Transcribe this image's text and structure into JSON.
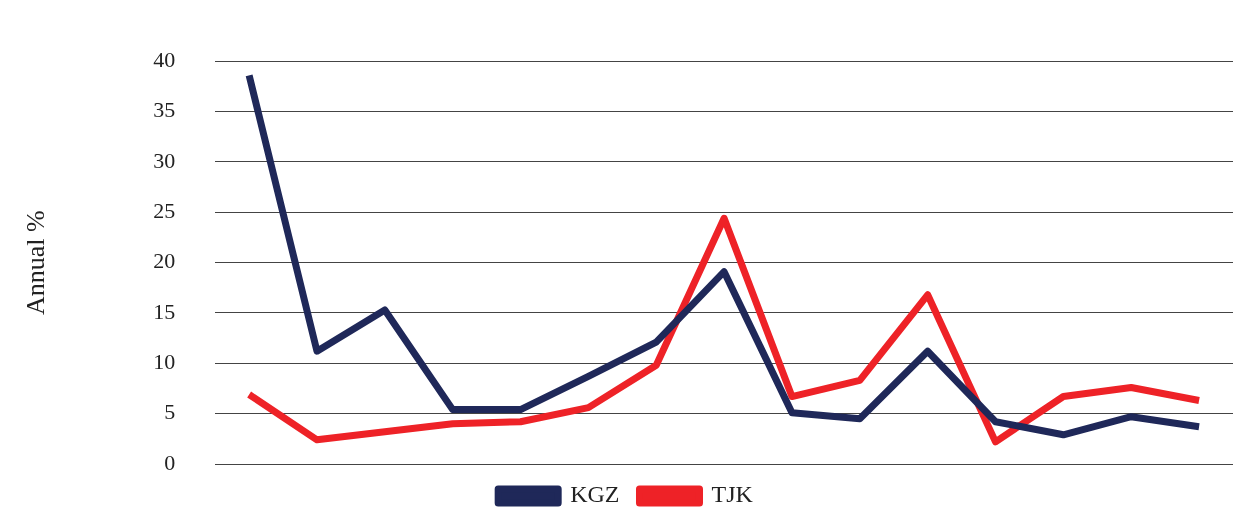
{
  "chart_data": {
    "type": "line",
    "ylabel": "Annual %",
    "categories": [
      null,
      null,
      null,
      null,
      null,
      null,
      null,
      null,
      null,
      null,
      null,
      null,
      null,
      null,
      null
    ],
    "series": [
      {
        "name": "KGZ",
        "color": "#1f2859",
        "values": [
          38.6,
          11.2,
          15.3,
          5.4,
          5.4,
          8.7,
          12.1,
          19.1,
          5.1,
          4.5,
          11.2,
          4.2,
          2.9,
          4.7,
          3.7
        ]
      },
      {
        "name": "TJK",
        "color": "#ee2227",
        "values": [
          6.9,
          2.4,
          3.2,
          4.0,
          4.2,
          5.6,
          9.8,
          24.4,
          6.7,
          8.3,
          16.8,
          2.2,
          6.7,
          7.6,
          6.3
        ]
      }
    ],
    "ylim": [
      0,
      40
    ],
    "yticks": [
      0,
      5,
      10,
      15,
      20,
      25,
      30,
      35,
      40
    ],
    "grid": "y",
    "legend": "bottom",
    "marker": "none",
    "line_style": "solid"
  }
}
